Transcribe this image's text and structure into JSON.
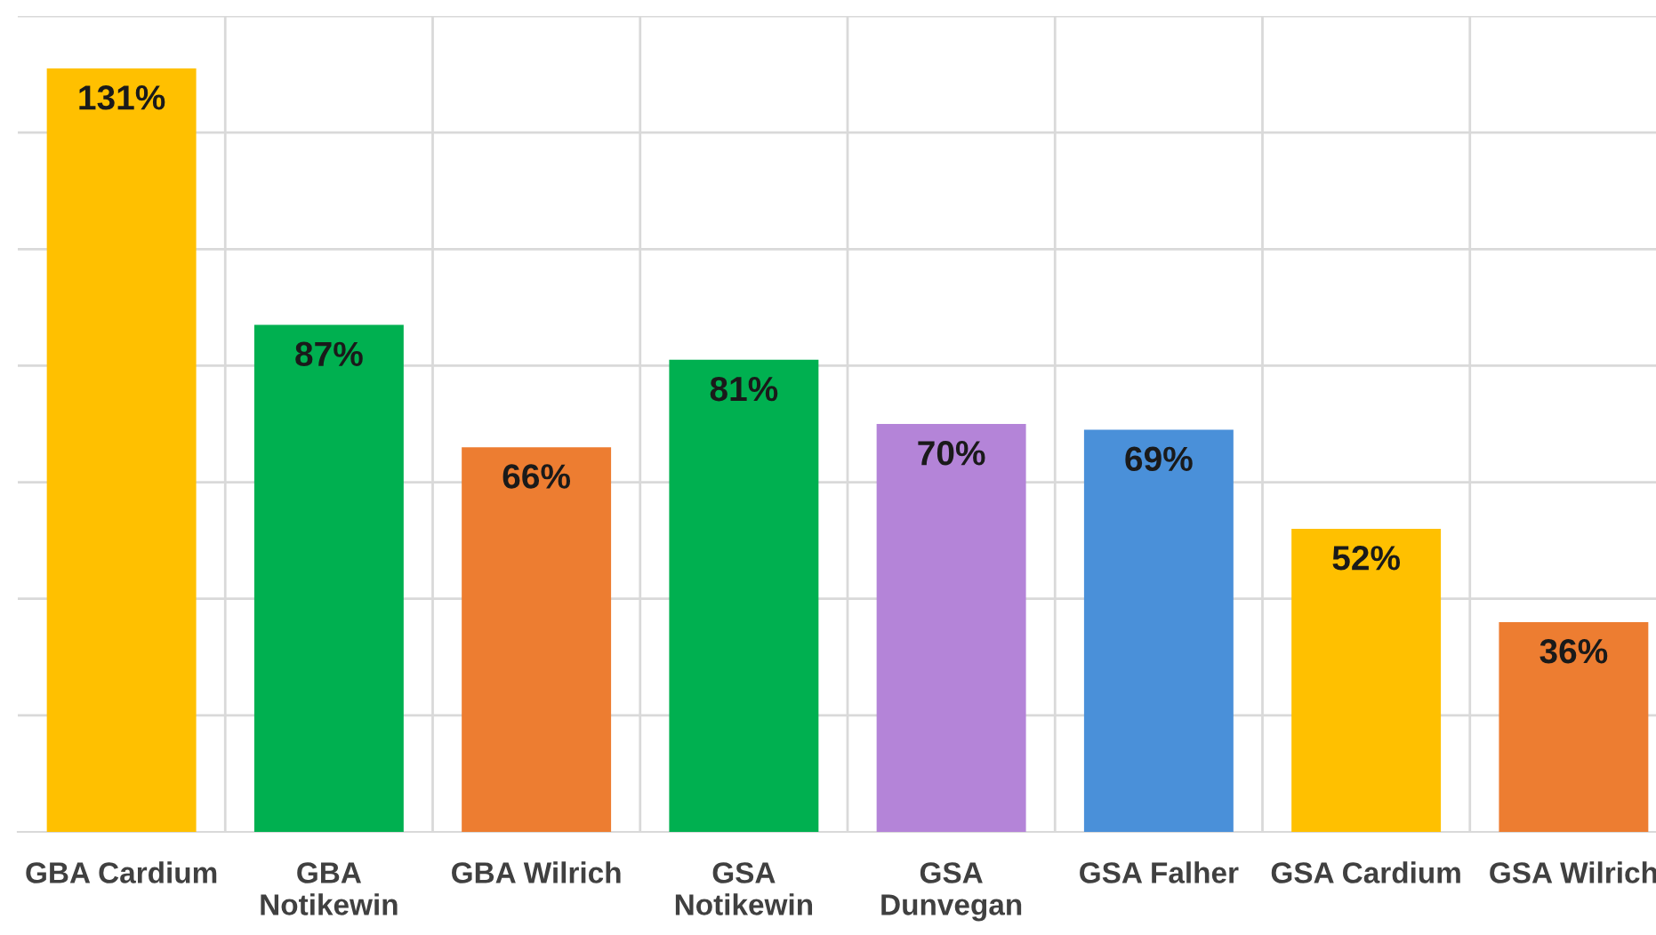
{
  "chart_data": {
    "type": "bar",
    "categories": [
      "GBA Cardium",
      "GBA\nNotikewin",
      "GBA Wilrich",
      "GSA\nNotikewin",
      "GSA\nDunvegan",
      "GSA Falher",
      "GSA Cardium",
      "GSA Wilrich"
    ],
    "values": [
      131,
      87,
      66,
      81,
      70,
      69,
      52,
      36
    ],
    "value_labels": [
      "131%",
      "87%",
      "66%",
      "81%",
      "70%",
      "69%",
      "52%",
      "36%"
    ],
    "colors": [
      "#ffc000",
      "#00b050",
      "#ed7d31",
      "#00b050",
      "#b484d8",
      "#4a90d9",
      "#ffc000",
      "#ed7d31"
    ],
    "ylim": [
      0,
      140
    ],
    "yticks": [
      {
        "value": 20,
        "label": null
      },
      {
        "value": 40,
        "label": null
      },
      {
        "value": 60,
        "label": null
      },
      {
        "value": 80,
        "label": null
      },
      {
        "value": 100,
        "label": null
      },
      {
        "value": 120,
        "label": null
      },
      {
        "value": 140,
        "label": null
      }
    ],
    "tick_labels": "x",
    "grid": true,
    "legend": false
  }
}
